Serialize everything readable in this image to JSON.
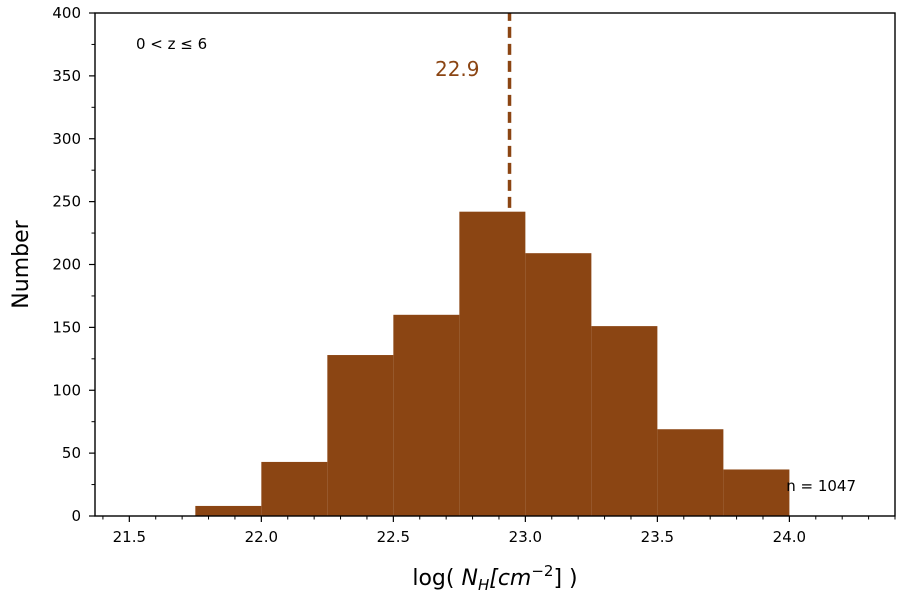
{
  "chart_data": {
    "type": "bar",
    "subtype": "histogram",
    "bin_edges": [
      21.75,
      22.0,
      22.25,
      22.5,
      22.75,
      23.0,
      23.25,
      23.5,
      23.75,
      24.0
    ],
    "values": [
      8,
      43,
      128,
      160,
      242,
      209,
      151,
      69,
      37
    ],
    "bar_color": "#8b4513",
    "xlabel_prefix": "log( ",
    "xlabel_var": "N",
    "xlabel_sub": "H",
    "xlabel_unit": "[cm",
    "xlabel_sup": "−2",
    "xlabel_suffix": "] )",
    "ylabel": "Number",
    "xlim": [
      21.37,
      24.4
    ],
    "ylim": [
      0,
      400
    ],
    "x_ticks": [
      21.5,
      22.0,
      22.5,
      23.0,
      23.5,
      24.0
    ],
    "x_tick_labels": [
      "21.5",
      "22.0",
      "22.5",
      "23.0",
      "23.5",
      "24.0"
    ],
    "y_ticks": [
      0,
      50,
      100,
      150,
      200,
      250,
      300,
      350,
      400
    ],
    "y_tick_labels": [
      "0",
      "50",
      "100",
      "150",
      "200",
      "250",
      "300",
      "350",
      "400"
    ],
    "median": {
      "value": 22.94,
      "label": "22.9",
      "y_from": 245,
      "y_to": 400,
      "color": "#8b4513",
      "style": "dashed"
    },
    "annotations": {
      "redshift_range": "0 < z ≤ 6",
      "count": "n = 1047"
    },
    "grid": false
  }
}
